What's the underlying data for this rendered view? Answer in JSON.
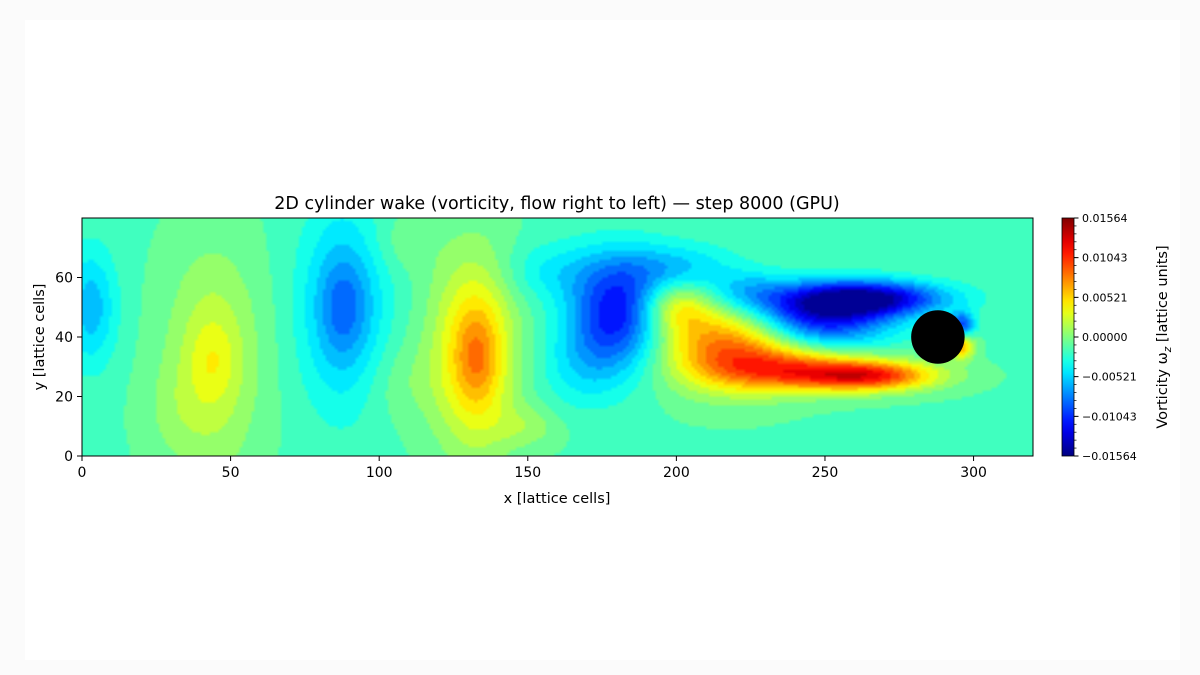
{
  "chart_data": {
    "type": "heatmap",
    "title": "2D cylinder wake (vorticity, flow right to left) — step 8000 (GPU)",
    "xlabel": "x [lattice cells]",
    "ylabel": "y [lattice cells]",
    "xlim": [
      0,
      320
    ],
    "ylim": [
      0,
      80
    ],
    "x_ticks": [
      0,
      50,
      100,
      150,
      200,
      250,
      300
    ],
    "y_ticks": [
      0,
      20,
      40,
      60
    ],
    "colormap": "jet",
    "colorbar": {
      "label_prefix": "Vorticity ω",
      "label_sub": "z",
      "label_suffix": " [lattice units]",
      "min": -0.01564,
      "max": 0.01564,
      "tick_values": [
        0.01564,
        0.01043,
        0.00521,
        0.0,
        -0.00521,
        -0.01043,
        -0.01564
      ],
      "tick_labels": [
        "0.01564",
        "0.01043",
        "0.00521",
        "0.00000",
        "−0.00521",
        "−0.01043",
        "−0.01564"
      ]
    },
    "obstacle": {
      "shape": "circle",
      "cx": 288,
      "cy": 40,
      "r": 9,
      "color": "#000000"
    },
    "background_value": -0.0015,
    "vortex_features": [
      {
        "x": 3,
        "y": 50,
        "sx": 6,
        "sy": 14,
        "value": -0.0045
      },
      {
        "x": 44,
        "y": 32,
        "sx": 11,
        "sy": 26,
        "value": 0.004
      },
      {
        "x": 44,
        "y": 32,
        "sx": 5,
        "sy": 9,
        "value": 0.0015
      },
      {
        "x": 30,
        "y": 15,
        "sx": 8,
        "sy": 12,
        "value": 0.001
      },
      {
        "x": 88,
        "y": 50,
        "sx": 10,
        "sy": 23,
        "value": -0.0055
      },
      {
        "x": 88,
        "y": 50,
        "sx": 5,
        "sy": 10,
        "value": -0.002
      },
      {
        "x": 107,
        "y": 25,
        "sx": 10,
        "sy": 10,
        "value": 0.0012
      },
      {
        "x": 108,
        "y": 72,
        "sx": 8,
        "sy": 7,
        "value": 0.0012
      },
      {
        "x": 132,
        "y": 35,
        "sx": 10,
        "sy": 23,
        "value": 0.007
      },
      {
        "x": 133,
        "y": 33,
        "sx": 5,
        "sy": 11,
        "value": 0.003
      },
      {
        "x": 150,
        "y": 10,
        "sx": 8,
        "sy": 5,
        "value": 0.002
      },
      {
        "x": 158,
        "y": 62,
        "sx": 12,
        "sy": 7,
        "value": -0.0025
      },
      {
        "x": 180,
        "y": 48,
        "sx": 11,
        "sy": 13,
        "value": -0.01
      },
      {
        "x": 200,
        "y": 63,
        "sx": 14,
        "sy": 6,
        "value": -0.004
      },
      {
        "x": 168,
        "y": 30,
        "sx": 10,
        "sy": 10,
        "value": -0.0025
      },
      {
        "x": 218,
        "y": 37,
        "sx": 16,
        "sy": 10,
        "value": 0.01
      },
      {
        "x": 240,
        "y": 29,
        "sx": 18,
        "sy": 5,
        "value": 0.008
      },
      {
        "x": 265,
        "y": 27,
        "sx": 16,
        "sy": 3.5,
        "value": 0.0115
      },
      {
        "x": 200,
        "y": 50,
        "sx": 8,
        "sy": 6,
        "value": 0.005
      },
      {
        "x": 248,
        "y": 47,
        "sx": 17,
        "sy": 7,
        "value": -0.011
      },
      {
        "x": 265,
        "y": 53,
        "sx": 18,
        "sy": 4,
        "value": -0.0115
      },
      {
        "x": 224,
        "y": 55,
        "sx": 10,
        "sy": 5,
        "value": -0.004
      },
      {
        "x": 296,
        "y": 37,
        "sx": 3,
        "sy": 3,
        "value": 0.008
      },
      {
        "x": 296,
        "y": 44,
        "sx": 3,
        "sy": 3,
        "value": -0.008
      }
    ]
  }
}
